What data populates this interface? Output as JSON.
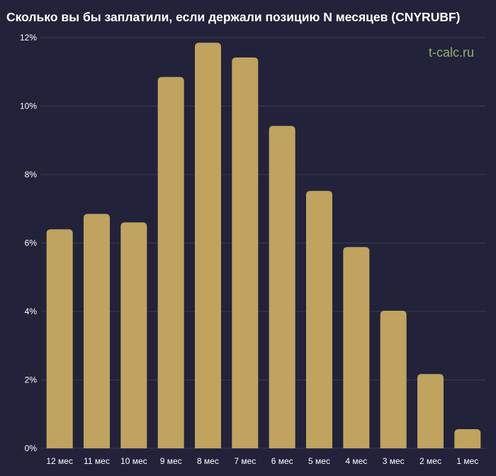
{
  "chart_data": {
    "type": "bar",
    "title": "Сколько вы бы заплатили, если держали позицию N месяцев (CNYRUBF)",
    "categories": [
      "12 мес",
      "11 мес",
      "10 мес",
      "9 мес",
      "8 мес",
      "7 мес",
      "6 мес",
      "5 мес",
      "4 мес",
      "3 мес",
      "2 мес",
      "1 мес"
    ],
    "values": [
      6.4,
      6.85,
      6.6,
      10.85,
      11.85,
      11.42,
      9.42,
      7.52,
      5.88,
      4.02,
      2.17,
      0.56
    ],
    "y_ticks": [
      "0%",
      "2%",
      "4%",
      "6%",
      "8%",
      "10%",
      "12%"
    ],
    "y_tick_values": [
      0,
      2,
      4,
      6,
      8,
      10,
      12
    ],
    "ylim": [
      0,
      12
    ],
    "xlabel": "",
    "ylabel": "",
    "grid": true,
    "bar_color": "#bfa35f",
    "background_color": "#22223a",
    "grid_color": "#3a3a52",
    "text_color": "#ffffff"
  },
  "watermark": {
    "text": "t-calc.ru",
    "color": "#8fb26a"
  }
}
